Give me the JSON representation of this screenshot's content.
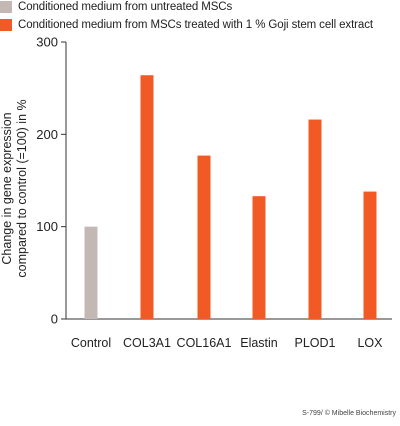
{
  "chart_data": {
    "type": "bar",
    "categories": [
      "Control",
      "COL3A1",
      "COL16A1",
      "Elastin",
      "PLOD1",
      "LOX"
    ],
    "series": [
      {
        "name": "Conditioned medium from untreated MSCs",
        "color": "#c4b8b5",
        "values": [
          100,
          null,
          null,
          null,
          null,
          null
        ]
      },
      {
        "name": "Conditioned medium from MSCs treated with 1 % Goji stem cell extract",
        "color": "#f15a24",
        "values": [
          null,
          264,
          177,
          133,
          216,
          138
        ]
      }
    ],
    "ylabel_lines": [
      "Change in gene expression",
      "compared to control (=100) in %"
    ],
    "xlabel": "",
    "ylim": [
      0,
      300
    ],
    "yticks": [
      "0",
      "100",
      "200",
      "300"
    ],
    "grid": false,
    "legend_position": "top-left"
  },
  "credit": "S-799/ © Mibelle Biochemistry"
}
